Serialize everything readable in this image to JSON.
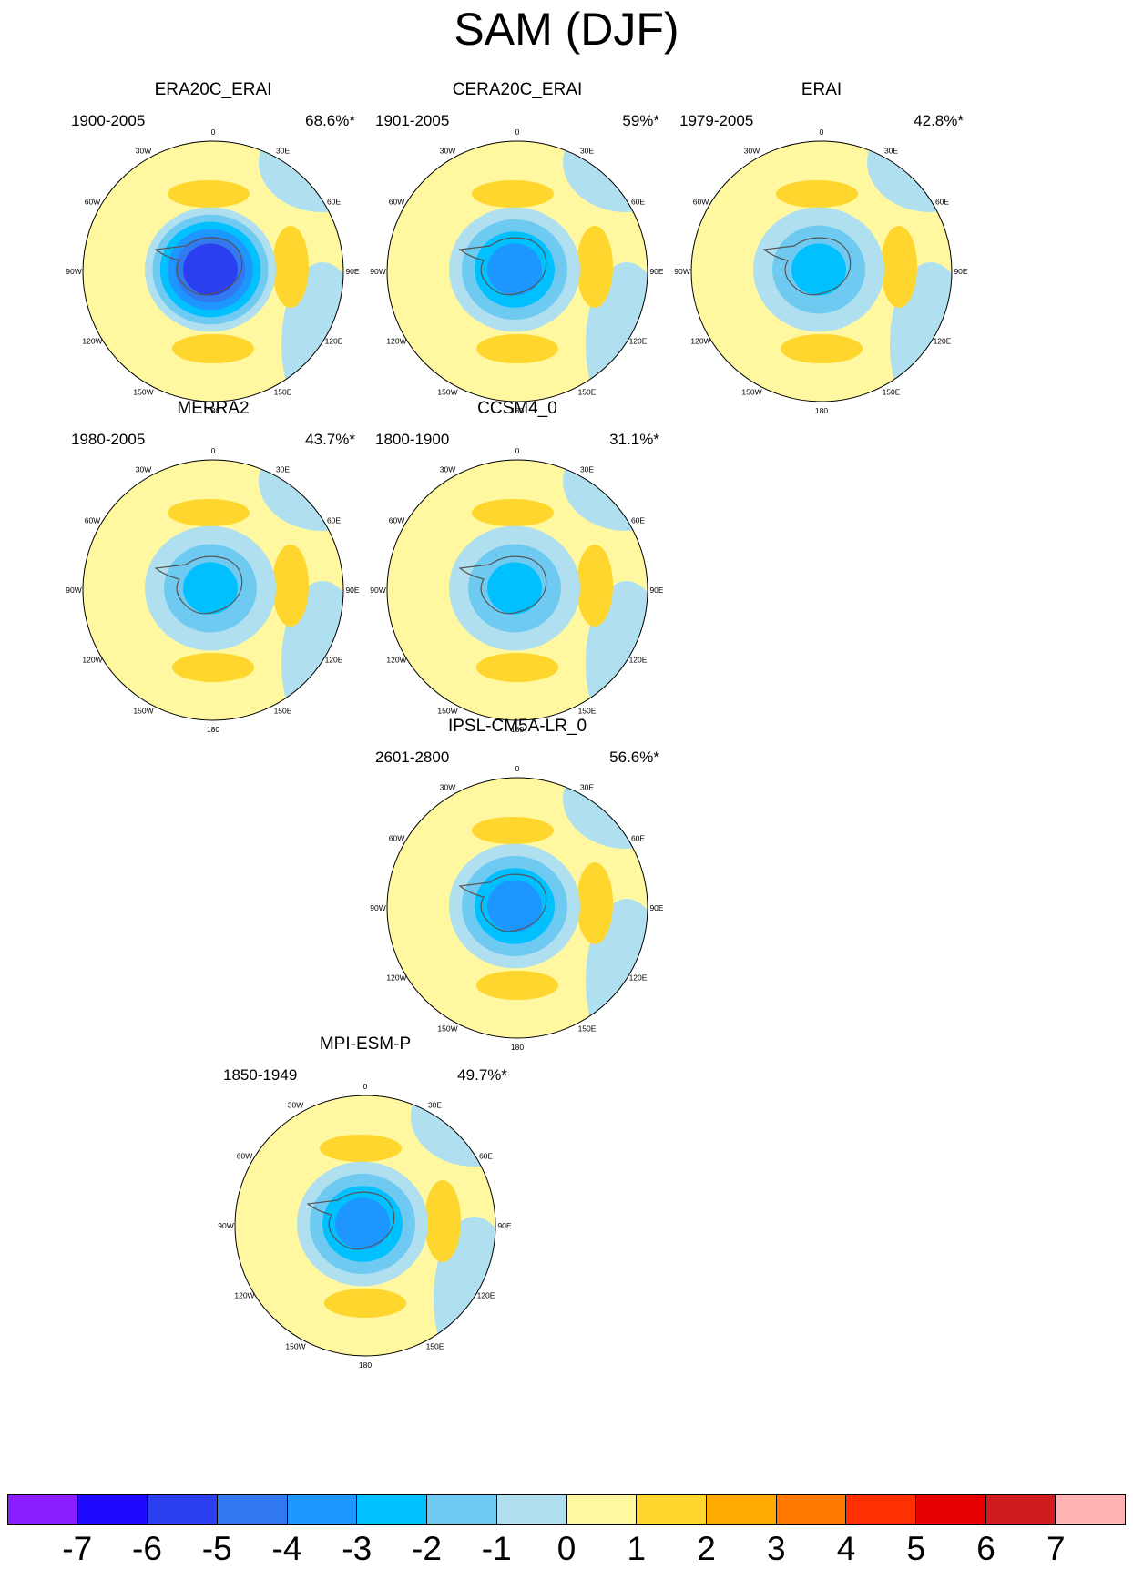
{
  "title": "SAM (DJF)",
  "lon_labels": [
    "0",
    "30E",
    "60E",
    "90E",
    "120E",
    "150E",
    "180",
    "150W",
    "120W",
    "90W",
    "60W",
    "30W"
  ],
  "panels": [
    {
      "name": "ERA20C_ERAI",
      "years": "1900-2005",
      "pct": "68.6%*",
      "core_level": -6,
      "ring_level": 1
    },
    {
      "name": "CERA20C_ERAI",
      "years": "1901-2005",
      "pct": "59%*",
      "core_level": -4,
      "ring_level": 1
    },
    {
      "name": "ERAI",
      "years": "1979-2005",
      "pct": "42.8%*",
      "core_level": -3,
      "ring_level": 1
    },
    {
      "name": "MERRA2",
      "years": "1980-2005",
      "pct": "43.7%*",
      "core_level": -3,
      "ring_level": 1
    },
    {
      "name": "CCSM4_0",
      "years": "1800-1900",
      "pct": "31.1%*",
      "core_level": -3,
      "ring_level": 1
    },
    {
      "name": "IPSL-CM5A-LR_0",
      "years": "2601-2800",
      "pct": "56.6%*",
      "core_level": -4,
      "ring_level": 1
    },
    {
      "name": "MPI-ESM-P",
      "years": "1850-1949",
      "pct": "49.7%*",
      "core_level": -4,
      "ring_level": 1
    }
  ],
  "colorbar": {
    "colors": [
      "#8a1eff",
      "#1e0aff",
      "#2b3ff0",
      "#3278ef",
      "#1e96ff",
      "#00c0ff",
      "#6fcaf2",
      "#b0e0f0",
      "#fff8a0",
      "#ffd62d",
      "#ffaa00",
      "#ff7800",
      "#ff3000",
      "#e60000",
      "#d01c1c",
      "#ffb3b3"
    ],
    "labels": [
      "-7",
      "-6",
      "-5",
      "-4",
      "-3",
      "-2",
      "-1",
      "0",
      "1",
      "2",
      "3",
      "4",
      "5",
      "6",
      "7"
    ]
  }
}
